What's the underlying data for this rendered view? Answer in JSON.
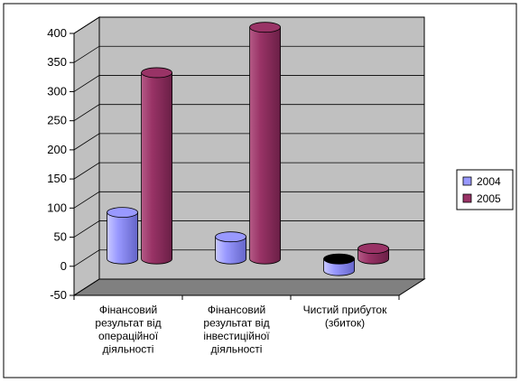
{
  "chart_data": {
    "type": "bar",
    "style": "3d-cylinder",
    "categories": [
      [
        "Фінансовий",
        "результат від",
        "операційної",
        "діяльності"
      ],
      [
        "Фінансовий",
        "результат від",
        "інвестиційної",
        "діяльності"
      ],
      [
        "Чистий прибуток",
        "(збиток)"
      ]
    ],
    "series": [
      {
        "name": "2004",
        "color": "#9999ff",
        "values": [
          80,
          38,
          -20
        ]
      },
      {
        "name": "2005",
        "color": "#993366",
        "values": [
          320,
          398,
          18
        ]
      }
    ],
    "ylim": [
      -50,
      400
    ],
    "yticks": [
      -50,
      0,
      50,
      100,
      150,
      200,
      250,
      300,
      350,
      400
    ],
    "legend_position": "right",
    "grid": true,
    "wall_color": "#c0c0c0",
    "floor_color": "#808080"
  }
}
